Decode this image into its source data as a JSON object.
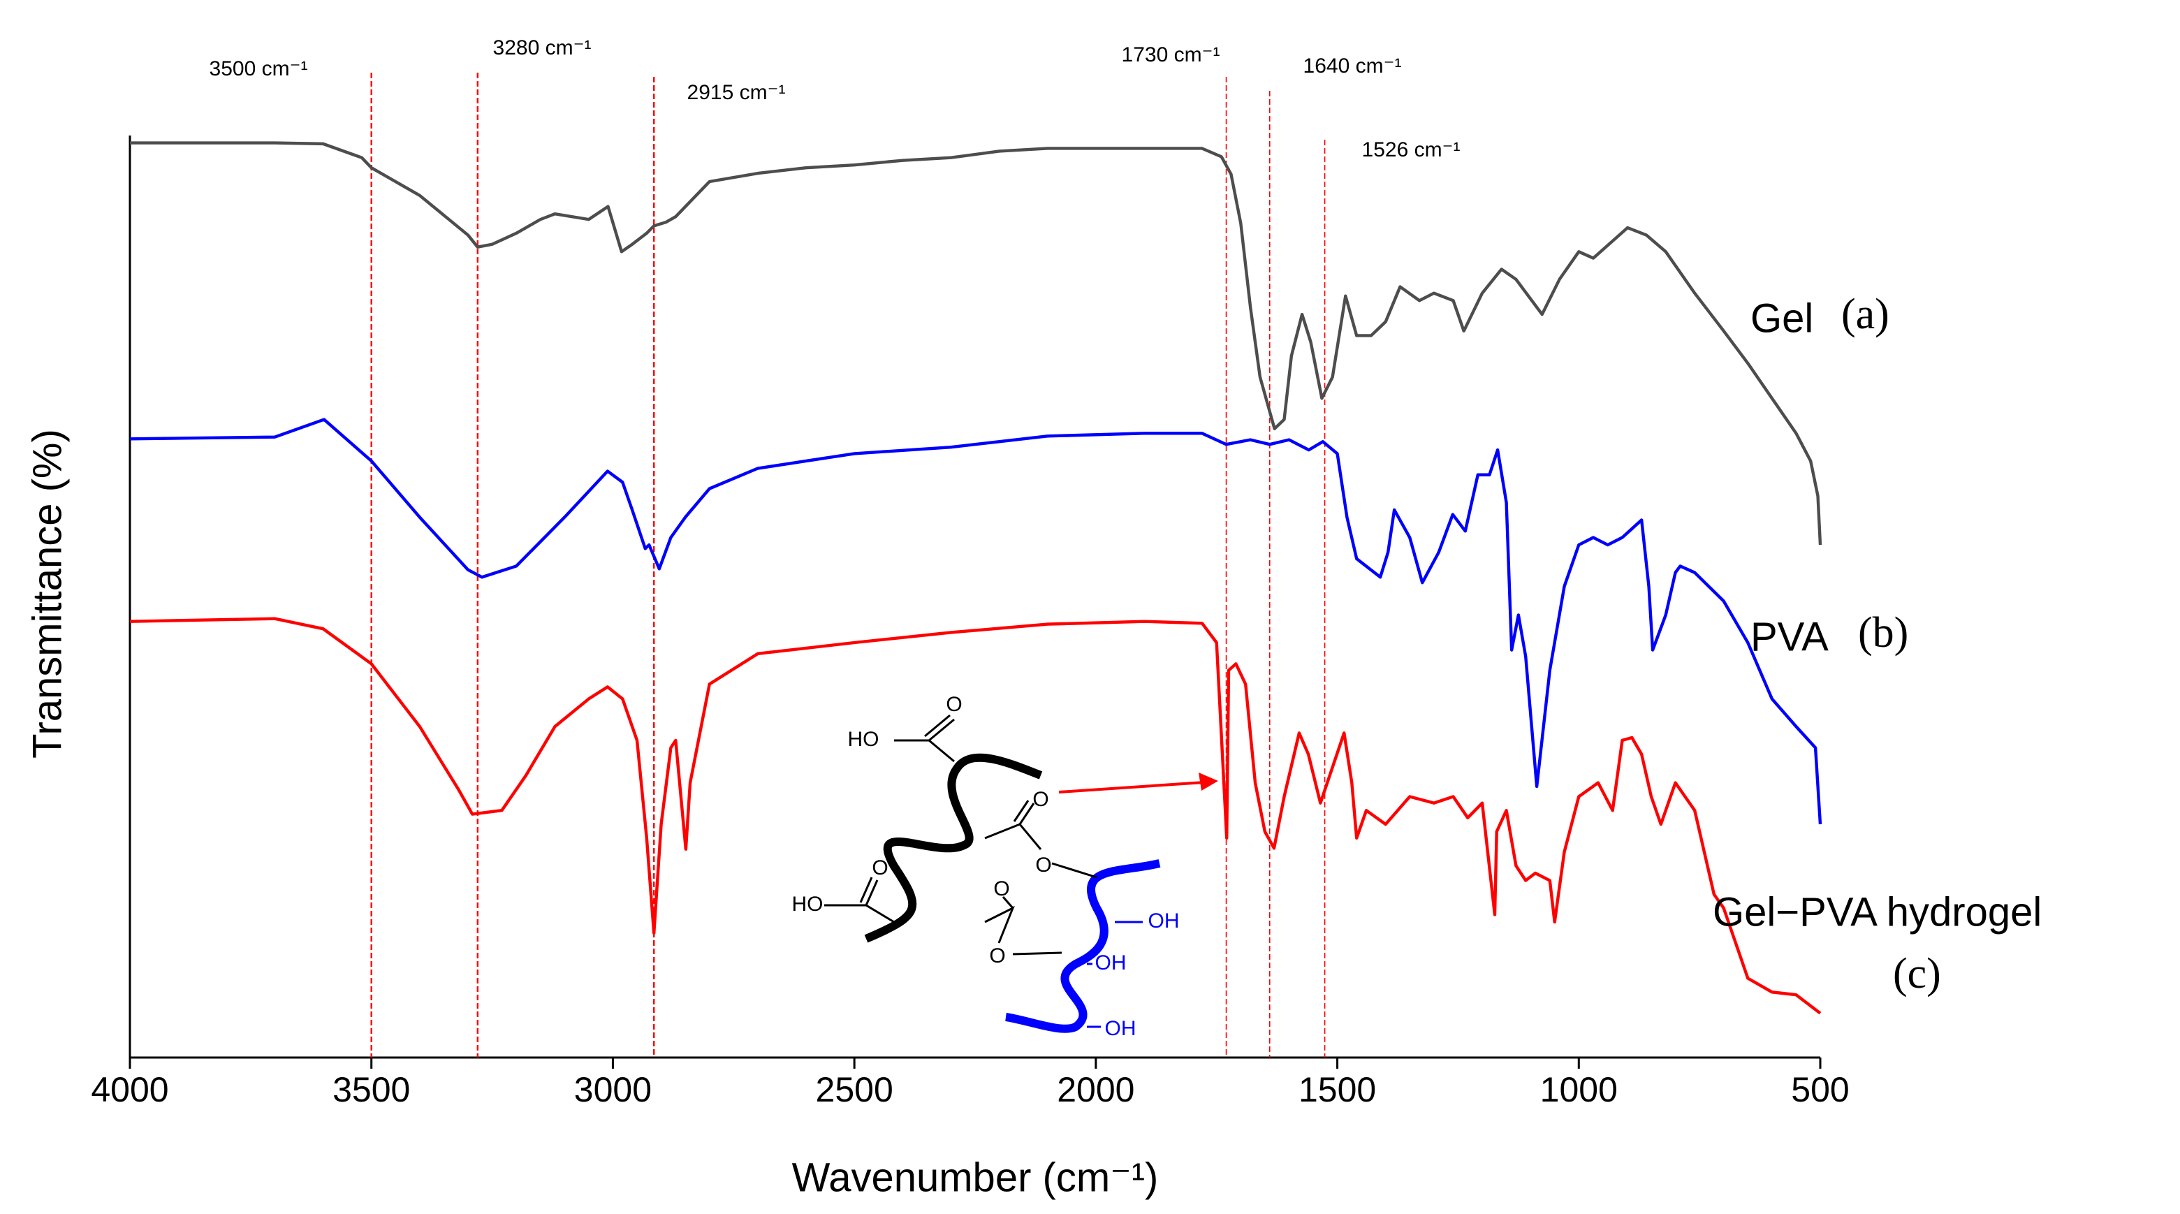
{
  "chart_data": {
    "type": "line",
    "x_label": "Wavenumber (cm⁻¹)",
    "y_label": "Transmittance (%)",
    "xlim": [
      4000,
      500
    ],
    "xticks": [
      4000,
      3500,
      3000,
      2500,
      2000,
      1500,
      1000,
      500
    ],
    "ylim": [
      0,
      100
    ],
    "annotations": [
      {
        "x": 3500,
        "label": "3500 cm⁻¹"
      },
      {
        "x": 3280,
        "label": "3280 cm⁻¹"
      },
      {
        "x": 2915,
        "label": "2915 cm⁻¹"
      },
      {
        "x": 1730,
        "label": "1730 cm⁻¹"
      },
      {
        "x": 1640,
        "label": "1640 cm⁻¹"
      },
      {
        "x": 1526,
        "label": "1526 cm⁻¹"
      }
    ],
    "annotation_color": "#ff0000",
    "series": [
      {
        "name": "Gel",
        "tag": "(a)",
        "color": "#4d4d4d",
        "label_color": "#000000",
        "x": [
          4000,
          3700,
          3600,
          3520,
          3500,
          3400,
          3300,
          3280,
          3250,
          3200,
          3150,
          3120,
          3050,
          3010,
          2982,
          2960,
          2930,
          2915,
          2890,
          2870,
          2800,
          2700,
          2600,
          2500,
          2400,
          2300,
          2200,
          2100,
          2000,
          1900,
          1780,
          1740,
          1720,
          1700,
          1680,
          1660,
          1630,
          1610,
          1595,
          1573,
          1555,
          1532,
          1510,
          1483,
          1460,
          1430,
          1400,
          1370,
          1330,
          1300,
          1260,
          1238,
          1200,
          1160,
          1130,
          1076,
          1040,
          1000,
          970,
          899,
          860,
          820,
          760,
          700,
          650,
          600,
          550,
          520,
          505,
          500
        ],
        "values": [
          99.2,
          99.2,
          99.1,
          97.6,
          96.5,
          93.5,
          89.2,
          87.9,
          88.2,
          89.4,
          90.9,
          91.5,
          90.9,
          92.3,
          87.4,
          88.2,
          89.4,
          90.2,
          90.6,
          91.2,
          95.0,
          95.9,
          96.5,
          96.8,
          97.3,
          97.6,
          98.3,
          98.6,
          98.6,
          98.6,
          98.6,
          97.7,
          95.8,
          90.5,
          81.4,
          73.8,
          68.2,
          69.2,
          76.1,
          80.6,
          77.6,
          71.5,
          73.8,
          82.6,
          78.3,
          78.3,
          79.8,
          83.6,
          82.1,
          82.9,
          82.1,
          78.8,
          82.9,
          85.5,
          84.4,
          80.6,
          84.4,
          87.4,
          86.7,
          90.0,
          89.2,
          87.4,
          82.9,
          78.8,
          75.3,
          71.5,
          67.7,
          64.7,
          60.9,
          55.6
        ]
      },
      {
        "name": "PVA",
        "tag": "(b)",
        "color": "#0000ff",
        "label_color": "#0000ff",
        "x": [
          4000,
          3700,
          3598,
          3500,
          3400,
          3300,
          3271,
          3200,
          3100,
          3011,
          2980,
          2960,
          2933,
          2925,
          2904,
          2880,
          2850,
          2800,
          2700,
          2500,
          2300,
          2100,
          1900,
          1780,
          1730,
          1680,
          1640,
          1600,
          1559,
          1530,
          1500,
          1480,
          1460,
          1411,
          1395,
          1382,
          1350,
          1324,
          1290,
          1261,
          1235,
          1209,
          1185,
          1168,
          1150,
          1139,
          1125,
          1110,
          1087,
          1060,
          1030,
          1000,
          970,
          940,
          910,
          870,
          855,
          847,
          820,
          800,
          790,
          760,
          700,
          650,
          600,
          550,
          510,
          500
        ],
        "values": [
          67.1,
          67.3,
          69.2,
          64.7,
          58.6,
          52.9,
          52.1,
          53.3,
          58.6,
          63.6,
          62.4,
          59.4,
          55.2,
          55.6,
          53.0,
          56.4,
          58.6,
          61.7,
          63.9,
          65.5,
          66.2,
          67.4,
          67.7,
          67.7,
          66.5,
          67.0,
          66.5,
          67.0,
          65.9,
          66.8,
          65.5,
          58.6,
          54.1,
          52.1,
          54.8,
          59.4,
          56.4,
          51.5,
          54.8,
          58.9,
          57.1,
          63.2,
          63.2,
          65.9,
          60.2,
          44.2,
          48.0,
          43.5,
          29.4,
          42.0,
          51.1,
          55.6,
          56.4,
          55.6,
          56.4,
          58.3,
          51.1,
          44.2,
          48.0,
          52.6,
          53.3,
          52.6,
          49.5,
          45.0,
          38.9,
          35.9,
          33.6,
          25.3
        ]
      },
      {
        "name": "Gel−PVA hydrogel",
        "tag": "(c)",
        "color": "#ff0000",
        "label_color": "#ff0000",
        "x": [
          4000,
          3700,
          3600,
          3500,
          3400,
          3320,
          3291,
          3230,
          3180,
          3120,
          3050,
          3011,
          2980,
          2950,
          2930,
          2915,
          2900,
          2880,
          2870,
          2849,
          2840,
          2800,
          2700,
          2500,
          2300,
          2100,
          1900,
          1780,
          1750,
          1729,
          1725,
          1710,
          1690,
          1670,
          1650,
          1631,
          1610,
          1579,
          1560,
          1535,
          1486,
          1470,
          1460,
          1440,
          1400,
          1350,
          1300,
          1260,
          1230,
          1200,
          1174,
          1170,
          1150,
          1130,
          1110,
          1090,
          1060,
          1050,
          1030,
          1000,
          960,
          930,
          910,
          890,
          870,
          850,
          830,
          800,
          760,
          720,
          700,
          650,
          600,
          550,
          500
        ],
        "values": [
          47.3,
          47.6,
          46.5,
          42.7,
          35.9,
          29.1,
          26.4,
          26.8,
          30.6,
          35.9,
          38.9,
          40.2,
          38.9,
          34.4,
          23.8,
          13.5,
          25.3,
          33.6,
          34.4,
          22.6,
          29.8,
          40.5,
          43.8,
          45.0,
          46.1,
          47.0,
          47.3,
          47.1,
          45.0,
          23.8,
          42.0,
          42.7,
          40.5,
          29.8,
          24.5,
          22.7,
          28.3,
          35.2,
          32.9,
          27.6,
          35.2,
          29.8,
          23.8,
          26.8,
          25.3,
          28.3,
          27.6,
          28.3,
          26.0,
          27.6,
          15.5,
          24.5,
          26.8,
          20.8,
          19.2,
          20.0,
          19.2,
          14.7,
          22.3,
          28.3,
          29.8,
          26.8,
          34.4,
          34.7,
          32.9,
          28.3,
          25.3,
          29.8,
          26.8,
          17.7,
          16.2,
          8.6,
          7.1,
          6.8,
          4.8
        ]
      }
    ],
    "inset_labels": [
      "HO",
      "O",
      "O",
      "O",
      "HO",
      "O",
      "O",
      "O",
      "OH",
      "OH",
      "OH"
    ]
  }
}
